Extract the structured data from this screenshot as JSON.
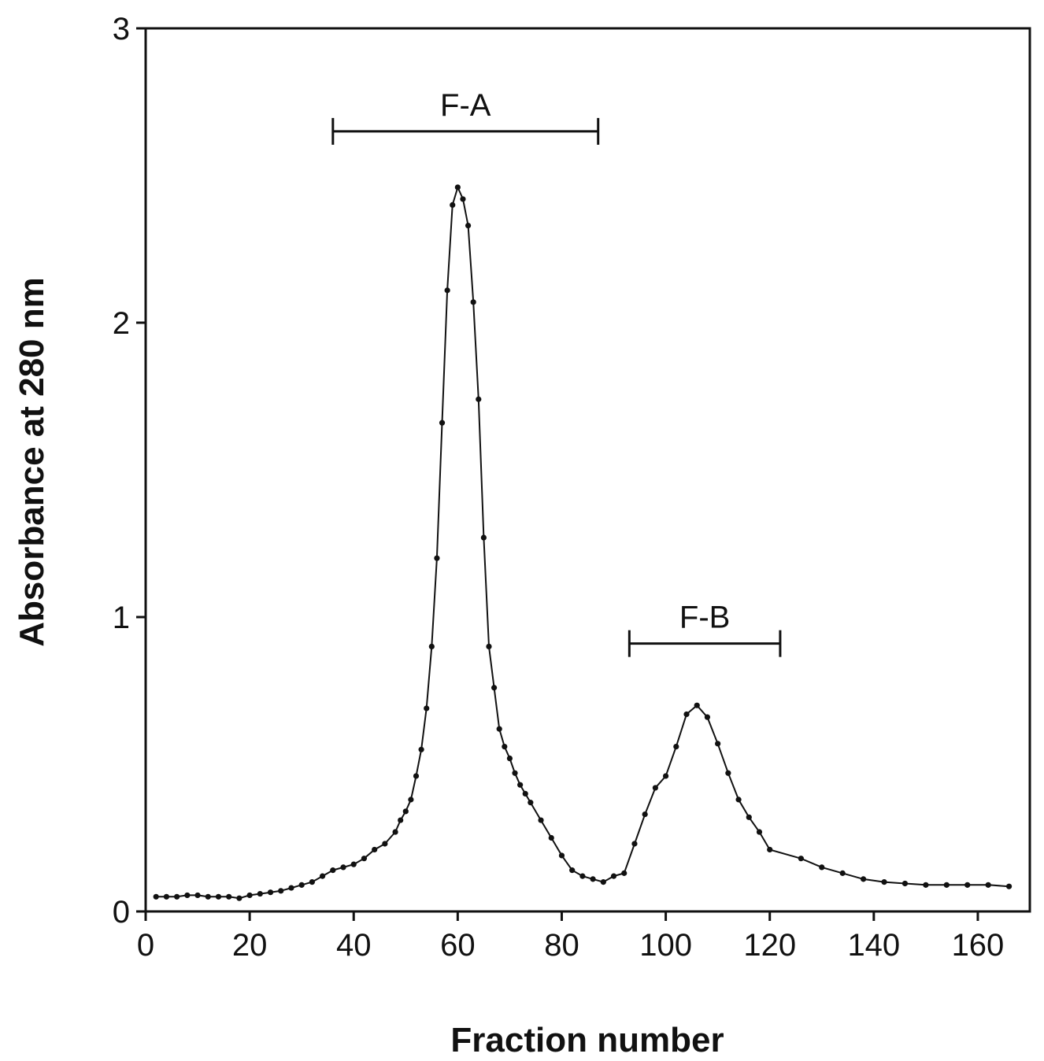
{
  "chart_data": {
    "type": "line",
    "title": "",
    "xlabel": "Fraction number",
    "ylabel": "Absorbance at 280 nm",
    "xlim": [
      0,
      170
    ],
    "ylim": [
      0,
      3
    ],
    "x_ticks": [
      "0",
      "20",
      "40",
      "60",
      "80",
      "100",
      "120",
      "140",
      "160"
    ],
    "y_ticks": [
      "0",
      "1",
      "2",
      "3"
    ],
    "grid": false,
    "legend": "none",
    "line_color": "#111111",
    "marker": "dot",
    "annotations": [
      {
        "label": "F-A",
        "x_start": 36,
        "x_end": 87,
        "y": 2.65
      },
      {
        "label": "F-B",
        "x_start": 93,
        "x_end": 122,
        "y": 0.91
      }
    ],
    "series": [
      {
        "x": [
          2,
          4,
          6,
          8,
          10,
          12,
          14,
          16,
          18,
          20,
          22,
          24,
          26,
          28,
          30,
          32,
          34,
          36,
          38,
          40,
          42,
          44,
          46,
          48,
          49,
          50,
          51,
          52,
          53,
          54,
          55,
          56,
          57,
          58,
          59,
          60,
          61,
          62,
          63,
          64,
          65,
          66,
          67,
          68,
          69,
          70,
          71,
          72,
          73,
          74,
          76,
          78,
          80,
          82,
          84,
          86,
          88,
          90,
          92,
          94,
          96,
          98,
          100,
          102,
          104,
          106,
          108,
          110,
          112,
          114,
          116,
          118,
          120,
          126,
          130,
          134,
          138,
          142,
          146,
          150,
          154,
          158,
          162,
          166
        ],
        "y": [
          0.05,
          0.05,
          0.05,
          0.055,
          0.055,
          0.05,
          0.05,
          0.05,
          0.045,
          0.055,
          0.06,
          0.065,
          0.07,
          0.08,
          0.09,
          0.1,
          0.12,
          0.14,
          0.15,
          0.16,
          0.18,
          0.21,
          0.23,
          0.27,
          0.31,
          0.34,
          0.38,
          0.46,
          0.55,
          0.69,
          0.9,
          1.2,
          1.66,
          2.11,
          2.4,
          2.46,
          2.42,
          2.33,
          2.07,
          1.74,
          1.27,
          0.9,
          0.76,
          0.62,
          0.56,
          0.52,
          0.47,
          0.43,
          0.4,
          0.37,
          0.31,
          0.25,
          0.19,
          0.14,
          0.12,
          0.11,
          0.1,
          0.12,
          0.13,
          0.23,
          0.33,
          0.42,
          0.46,
          0.56,
          0.67,
          0.7,
          0.66,
          0.57,
          0.47,
          0.38,
          0.32,
          0.27,
          0.21,
          0.18,
          0.15,
          0.13,
          0.11,
          0.1,
          0.095,
          0.09,
          0.09,
          0.09,
          0.09,
          0.085
        ]
      }
    ]
  }
}
